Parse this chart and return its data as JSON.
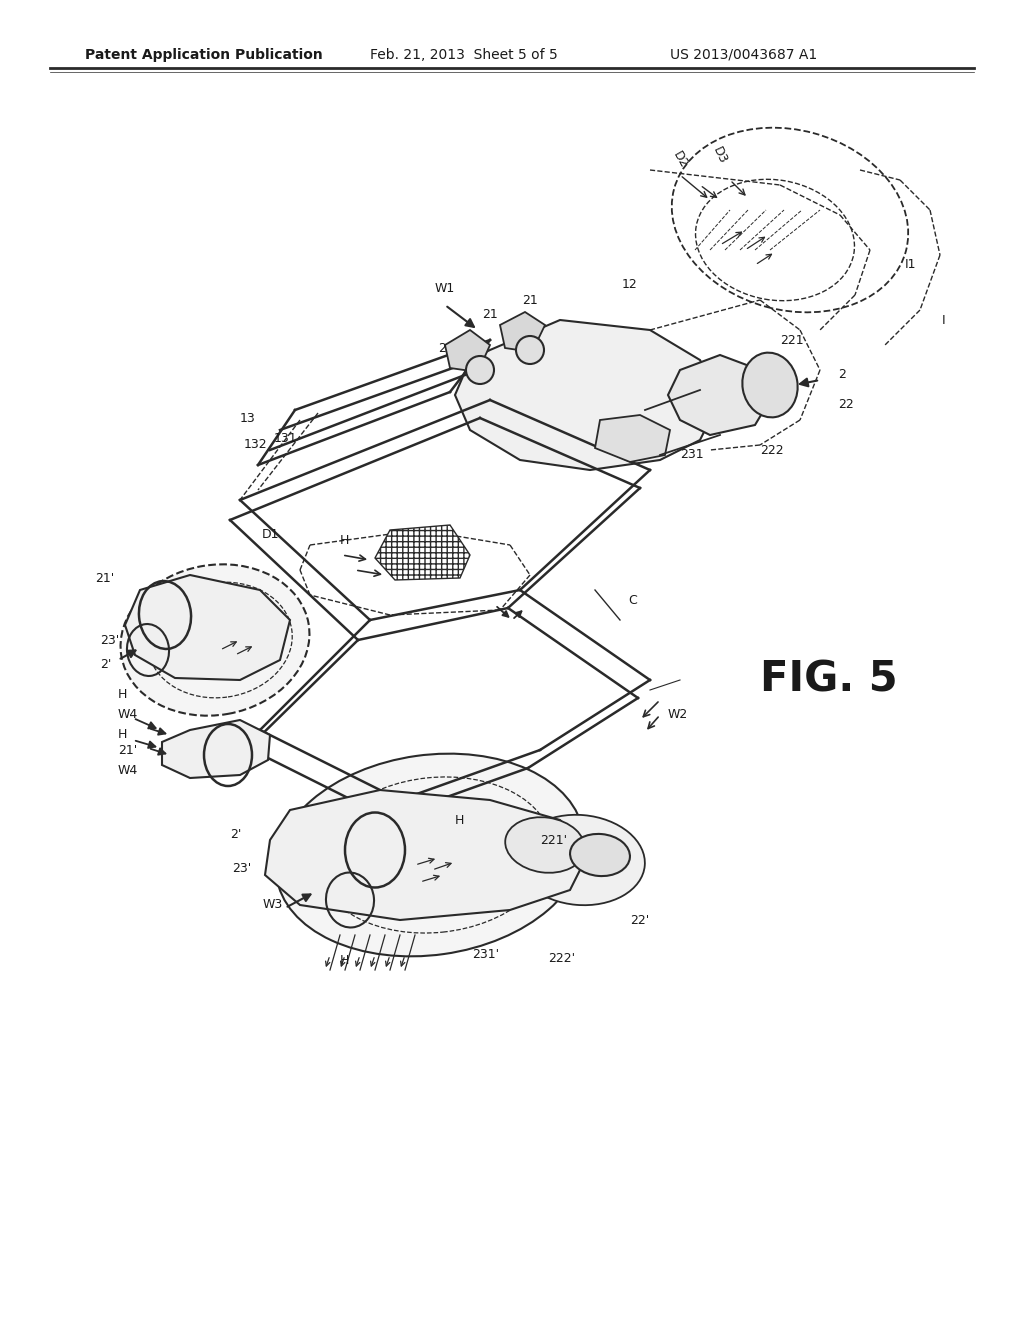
{
  "title_left": "Patent Application Publication",
  "title_mid": "Feb. 21, 2013  Sheet 5 of 5",
  "title_right": "US 2013/0043687 A1",
  "fig_label": "FIG. 5",
  "background_color": "#ffffff",
  "line_color": "#2a2a2a",
  "text_color": "#1a1a1a",
  "title_fontsize": 10.5,
  "label_fontsize": 9.5,
  "fig_label_fontsize": 28
}
